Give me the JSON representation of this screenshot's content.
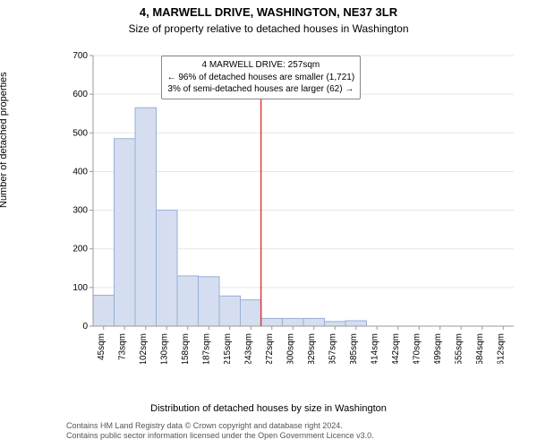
{
  "title": "4, MARWELL DRIVE, WASHINGTON, NE37 3LR",
  "subtitle": "Size of property relative to detached houses in Washington",
  "yaxis_label": "Number of detached properties",
  "xaxis_label": "Distribution of detached houses by size in Washington",
  "attribution_l1": "Contains HM Land Registry data © Crown copyright and database right 2024.",
  "attribution_l2": "Contains public sector information licensed under the Open Government Licence v3.0.",
  "callout": {
    "line1": "4 MARWELL DRIVE: 257sqm",
    "line2": "← 96% of detached houses are smaller (1,721)",
    "line3": "3% of semi-detached houses are larger (62) →"
  },
  "histogram": {
    "type": "histogram",
    "categories": [
      "45sqm",
      "73sqm",
      "102sqm",
      "130sqm",
      "158sqm",
      "187sqm",
      "215sqm",
      "243sqm",
      "272sqm",
      "300sqm",
      "329sqm",
      "357sqm",
      "385sqm",
      "414sqm",
      "442sqm",
      "470sqm",
      "499sqm",
      "555sqm",
      "584sqm",
      "612sqm"
    ],
    "values": [
      80,
      485,
      565,
      300,
      130,
      128,
      78,
      68,
      20,
      20,
      20,
      12,
      14,
      0,
      0,
      0,
      0,
      0,
      0,
      0
    ],
    "ylim": [
      0,
      700
    ],
    "ytick_step": 100,
    "bar_fill": "#d4def0",
    "bar_stroke": "#9aaed6",
    "grid_color": "#e5e5e5",
    "axis_color": "#999999",
    "marker_line_color": "#d94040",
    "marker_x_value": "257sqm",
    "background_color": "#ffffff",
    "tick_fontsize": 10,
    "label_fontsize": 11,
    "title_fontsize": 13
  }
}
